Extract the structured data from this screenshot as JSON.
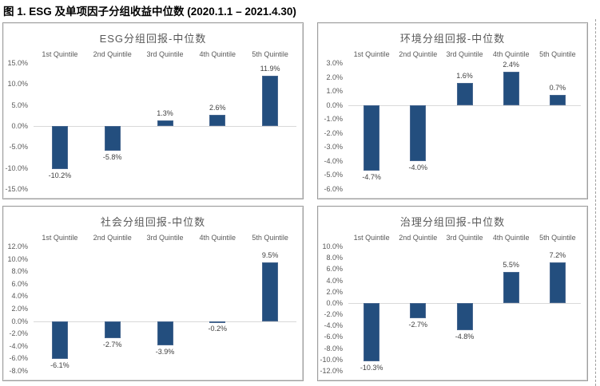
{
  "page_title": "图 1. ESG 及单项因子分组收益中位数 (2020.1.1 – 2021.4.30)",
  "colors": {
    "bar_fill": "#234E7E",
    "bar_border": "#46668F",
    "axis_text": "#595959",
    "data_label_text": "#404040",
    "zero_gridline": "#d9d9d9",
    "box_border": "#9e9e9e",
    "page_boundary_dash": "#a0a0a0"
  },
  "chart_data": [
    {
      "type": "bar",
      "title": "ESG分组回报-中位数",
      "categories": [
        "1st Quintile",
        "2nd Quintile",
        "3rd Quintile",
        "4th Quintile",
        "5th Quintile"
      ],
      "values": [
        -10.2,
        -5.8,
        1.3,
        2.6,
        11.9
      ],
      "data_labels": [
        "-10.2%",
        "-5.8%",
        "1.3%",
        "2.6%",
        "11.9%"
      ],
      "ylim": [
        -15,
        15
      ],
      "ystep": 5,
      "ytick_labels": [
        "15.0%",
        "10.0%",
        "5.0%",
        "0.0%",
        "-5.0%",
        "-10.0%",
        "-15.0%"
      ],
      "grid": "zero-line-only",
      "legend": "none",
      "xlabel": "",
      "ylabel": ""
    },
    {
      "type": "bar",
      "title": "环境分组回报-中位数",
      "categories": [
        "1st Quintile",
        "2nd Quintile",
        "3rd Quintile",
        "4th Quintile",
        "5th Quintile"
      ],
      "values": [
        -4.7,
        -4.0,
        1.6,
        2.4,
        0.7
      ],
      "data_labels": [
        "-4.7%",
        "-4.0%",
        "1.6%",
        "2.4%",
        "0.7%"
      ],
      "ylim": [
        -6,
        3
      ],
      "ystep": 1,
      "ytick_labels": [
        "3.0%",
        "2.0%",
        "1.0%",
        "0.0%",
        "-1.0%",
        "-2.0%",
        "-3.0%",
        "-4.0%",
        "-5.0%",
        "-6.0%"
      ],
      "grid": "zero-line-only",
      "legend": "none",
      "xlabel": "",
      "ylabel": ""
    },
    {
      "type": "bar",
      "title": "社会分组回报-中位数",
      "categories": [
        "1st Quintile",
        "2nd Quintile",
        "3rd Quintile",
        "4th Quintile",
        "5th Quintile"
      ],
      "values": [
        -6.1,
        -2.7,
        -3.9,
        -0.2,
        9.5
      ],
      "data_labels": [
        "-6.1%",
        "-2.7%",
        "-3.9%",
        "-0.2%",
        "9.5%"
      ],
      "ylim": [
        -8,
        12
      ],
      "ystep": 2,
      "ytick_labels": [
        "12.0%",
        "10.0%",
        "8.0%",
        "6.0%",
        "4.0%",
        "2.0%",
        "0.0%",
        "-2.0%",
        "-4.0%",
        "-6.0%",
        "-8.0%"
      ],
      "grid": "zero-line-only",
      "legend": "none",
      "xlabel": "",
      "ylabel": ""
    },
    {
      "type": "bar",
      "title": "治理分组回报-中位数",
      "categories": [
        "1st Quintile",
        "2nd Quintile",
        "3rd Quintile",
        "4th Quintile",
        "5th Quintile"
      ],
      "values": [
        -10.3,
        -2.7,
        -4.8,
        5.5,
        7.2
      ],
      "data_labels": [
        "-10.3%",
        "-2.7%",
        "-4.8%",
        "5.5%",
        "7.2%"
      ],
      "ylim": [
        -12,
        10
      ],
      "ystep": 2,
      "ytick_labels": [
        "10.0%",
        "8.0%",
        "6.0%",
        "4.0%",
        "2.0%",
        "0.0%",
        "-2.0%",
        "-4.0%",
        "-6.0%",
        "-8.0%",
        "-10.0%",
        "-12.0%"
      ],
      "grid": "zero-line-only",
      "legend": "none",
      "xlabel": "",
      "ylabel": ""
    }
  ]
}
